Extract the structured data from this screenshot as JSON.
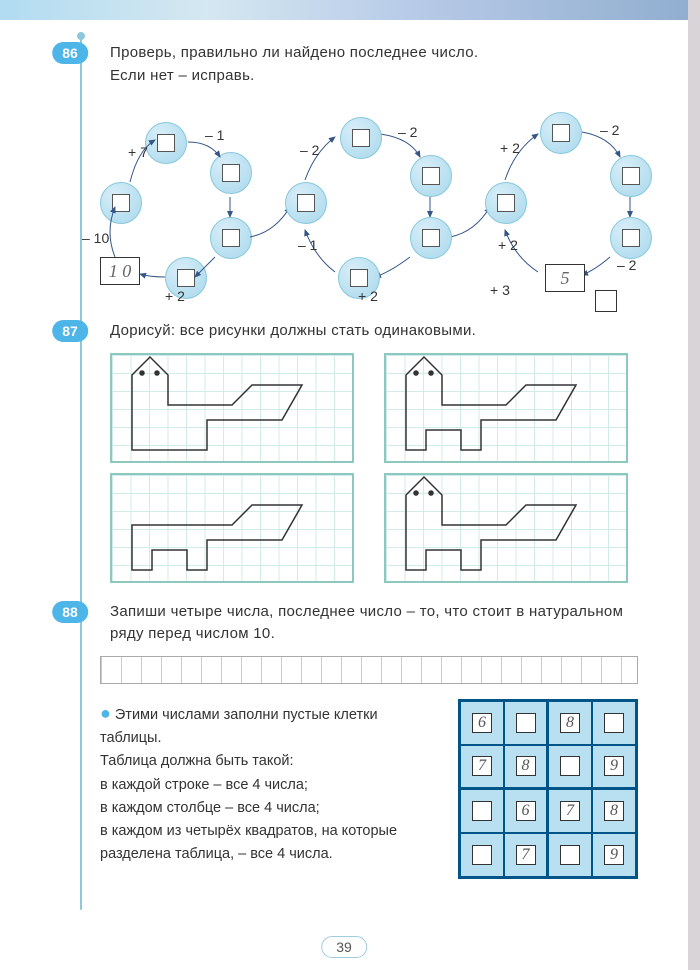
{
  "page_number": "39",
  "ex86": {
    "number": "86",
    "text_line1": "Проверь, правильно ли найдено последнее число.",
    "text_line2": "Если нет – исправь.",
    "start_value": "1 0",
    "end_value": "5",
    "ops": {
      "a": "+ 7",
      "b": "– 1",
      "c": "+ 2",
      "d": "– 10",
      "e": "– 2",
      "f": "– 1",
      "g": "+ 2",
      "h": "+ 3",
      "i": "– 2",
      "j": "+ 2",
      "k": "– 2",
      "l": "– 2"
    }
  },
  "ex87": {
    "number": "87",
    "text": "Дорисуй: все рисунки должны стать одинаковыми."
  },
  "ex88": {
    "number": "88",
    "text1": "Запиши четыре числа, последнее число – то, что стоит в натуральном ряду перед числом 10.",
    "bullet_text": "Этими числами заполни пустые клетки таблицы.",
    "text2": "Таблица должна быть такой:",
    "li1": "в каждой строке – все 4 числа;",
    "li2": "в каждом столбце – все 4 числа;",
    "li3": "в каждом из четырёх квадратов, на которые разделена таблица, – все 4 числа.",
    "sudoku_values": [
      [
        "6",
        "",
        "8",
        ""
      ],
      [
        "7",
        "8",
        "",
        "9"
      ],
      [
        "",
        "6",
        "7",
        "8"
      ],
      [
        "",
        "7",
        "",
        "9"
      ]
    ]
  },
  "colors": {
    "accent": "#4db5e8",
    "bubble": "#a8d8ec",
    "grid_border": "#8cc8c0",
    "sudoku_border": "#058",
    "sudoku_cell": "#b8e0f0"
  }
}
